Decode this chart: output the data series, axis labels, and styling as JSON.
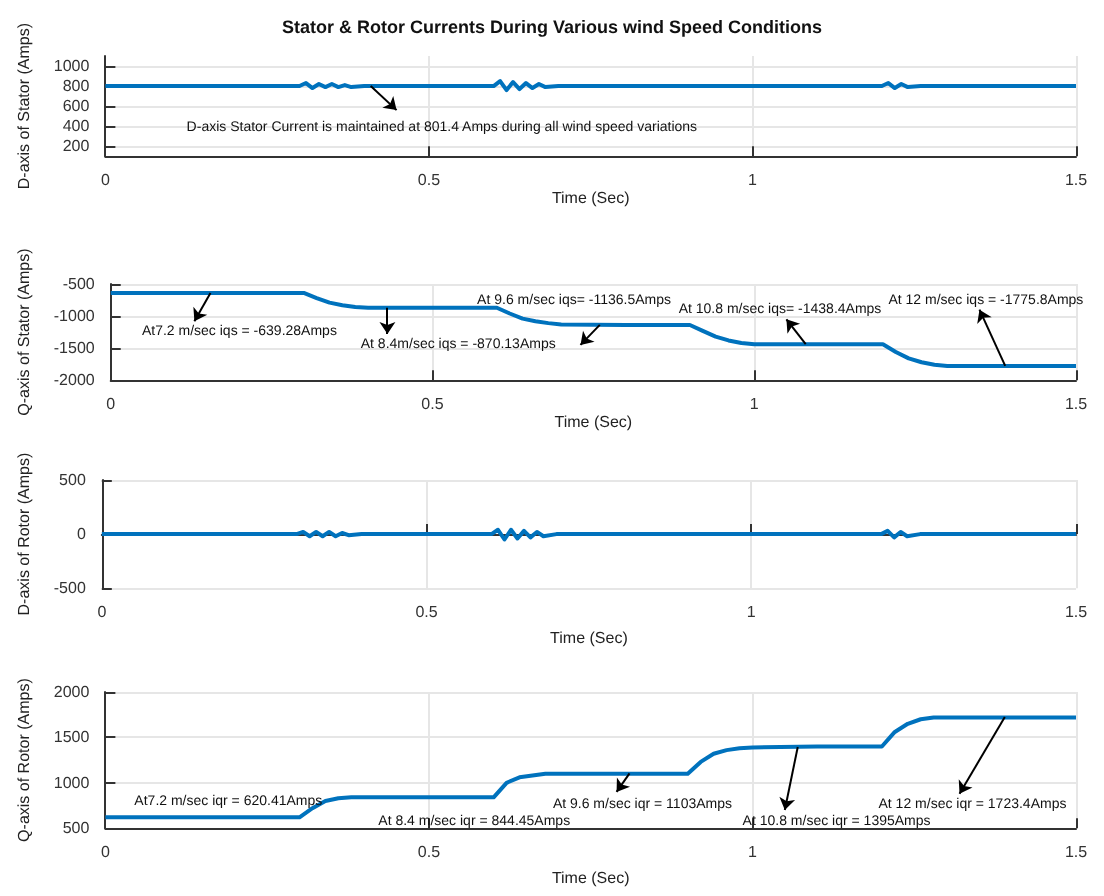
{
  "chart_data": [
    {
      "type": "line",
      "title": "Stator & Rotor Currents During Various wind Speed Conditions",
      "xlabel": "Time (Sec)",
      "ylabel": "D-axis of Stator (Amps)",
      "x": [
        0,
        0.1,
        0.2,
        0.3,
        0.31,
        0.32,
        0.33,
        0.34,
        0.35,
        0.36,
        0.37,
        0.38,
        0.4,
        0.5,
        0.6,
        0.61,
        0.62,
        0.63,
        0.64,
        0.65,
        0.66,
        0.67,
        0.68,
        0.7,
        0.8,
        0.9,
        1.0,
        1.1,
        1.2,
        1.21,
        1.22,
        1.23,
        1.24,
        1.26,
        1.3,
        1.4,
        1.5
      ],
      "series": [
        {
          "color": "#0072bd",
          "values": [
            800,
            800,
            800,
            800,
            830,
            780,
            820,
            790,
            820,
            790,
            810,
            790,
            800,
            800,
            800,
            850,
            760,
            840,
            770,
            830,
            780,
            820,
            790,
            800,
            800,
            800,
            800,
            800,
            800,
            830,
            780,
            820,
            790,
            800,
            800,
            800,
            800
          ]
        }
      ],
      "xlim": [
        0,
        1.5
      ],
      "xticks": [
        0,
        0.5,
        1,
        1.5
      ],
      "ylim": [
        100,
        1100
      ],
      "yticks": [
        200,
        400,
        600,
        800,
        1000
      ],
      "annotations": [
        {
          "text": "D-axis Stator Current is maintained at 801.4 Amps during all wind speed variations",
          "x": 0.41,
          "y": 801.4
        }
      ],
      "grid": true,
      "marker": "none"
    },
    {
      "type": "line",
      "xlabel": "Time (Sec)",
      "ylabel": "Q-axis of Stator (Amps)",
      "x": [
        0,
        0.3,
        0.32,
        0.34,
        0.36,
        0.38,
        0.4,
        0.5,
        0.6,
        0.62,
        0.64,
        0.66,
        0.68,
        0.7,
        0.8,
        0.9,
        0.92,
        0.94,
        0.96,
        0.98,
        1.0,
        1.1,
        1.2,
        1.22,
        1.24,
        1.26,
        1.28,
        1.3,
        1.4,
        1.5
      ],
      "series": [
        {
          "color": "#0072bd",
          "values": [
            -640,
            -640,
            -720,
            -790,
            -830,
            -860,
            -870,
            -870,
            -870,
            -960,
            -1040,
            -1080,
            -1110,
            -1130,
            -1140,
            -1140,
            -1230,
            -1320,
            -1380,
            -1420,
            -1440,
            -1440,
            -1440,
            -1560,
            -1660,
            -1720,
            -1760,
            -1780,
            -1780,
            -1780
          ]
        }
      ],
      "xlim": [
        0,
        1.5
      ],
      "xticks": [
        0,
        0.5,
        1,
        1.5
      ],
      "ylim": [
        -2000,
        -500
      ],
      "yticks": [
        -2000,
        -1500,
        -1000,
        -500
      ],
      "annotations": [
        {
          "text": "At7.2 m/sec iqs = -639.28Amps",
          "x": 0.155,
          "y": -639.28
        },
        {
          "text": "At 8.4m/sec iqs = -870.13Amps",
          "x": 0.43,
          "y": -870.13
        },
        {
          "text": "At 9.6 m/sec iqs= -1136.5Amps",
          "x": 0.76,
          "y": -1136.5
        },
        {
          "text": "At 10.8 m/sec iqs= -1438.4Amps",
          "x": 1.08,
          "y": -1438.4
        },
        {
          "text": "At 12 m/sec iqs = -1775.8Amps",
          "x": 1.39,
          "y": -1775.8
        }
      ],
      "grid": true,
      "marker": "none"
    },
    {
      "type": "line",
      "xlabel": "Time (Sec)",
      "ylabel": "D-axis of Rotor (Amps)",
      "x": [
        0,
        0.1,
        0.2,
        0.3,
        0.31,
        0.32,
        0.33,
        0.34,
        0.35,
        0.36,
        0.37,
        0.38,
        0.4,
        0.5,
        0.6,
        0.61,
        0.62,
        0.63,
        0.64,
        0.65,
        0.66,
        0.67,
        0.68,
        0.7,
        0.8,
        0.9,
        1.0,
        1.1,
        1.2,
        1.21,
        1.22,
        1.23,
        1.24,
        1.26,
        1.3,
        1.4,
        1.5
      ],
      "series": [
        {
          "color": "#0072bd",
          "values": [
            0,
            0,
            0,
            0,
            20,
            -20,
            20,
            -20,
            20,
            -20,
            10,
            -10,
            0,
            0,
            0,
            40,
            -50,
            40,
            -40,
            30,
            -30,
            20,
            -20,
            0,
            0,
            0,
            0,
            0,
            0,
            30,
            -30,
            20,
            -20,
            0,
            0,
            0,
            0
          ]
        }
      ],
      "xlim": [
        0,
        1.5
      ],
      "xticks": [
        0,
        0.5,
        1,
        1.5
      ],
      "ylim": [
        -500,
        500
      ],
      "yticks": [
        -500,
        0,
        500
      ],
      "grid": true,
      "marker": "none"
    },
    {
      "type": "line",
      "xlabel": "Time (Sec)",
      "ylabel": "Q-axis of Rotor (Amps)",
      "x": [
        0,
        0.3,
        0.32,
        0.34,
        0.36,
        0.38,
        0.4,
        0.5,
        0.6,
        0.62,
        0.64,
        0.66,
        0.68,
        0.7,
        0.8,
        0.9,
        0.92,
        0.94,
        0.96,
        0.98,
        1.0,
        1.1,
        1.2,
        1.22,
        1.24,
        1.26,
        1.28,
        1.3,
        1.4,
        1.5
      ],
      "series": [
        {
          "color": "#0072bd",
          "values": [
            620,
            620,
            720,
            800,
            830,
            840,
            840,
            840,
            840,
            1000,
            1060,
            1080,
            1100,
            1100,
            1100,
            1100,
            1230,
            1320,
            1360,
            1380,
            1390,
            1400,
            1400,
            1560,
            1650,
            1700,
            1720,
            1720,
            1720,
            1720
          ]
        }
      ],
      "xlim": [
        0,
        1.5
      ],
      "xticks": [
        0,
        0.5,
        1,
        1.5
      ],
      "ylim": [
        500,
        2000
      ],
      "yticks": [
        500,
        1000,
        1500,
        2000
      ],
      "annotations": [
        {
          "text": "At7.2 m/sec iqr = 620.41Amps",
          "x": 0.15,
          "y": 620.41
        },
        {
          "text": "At 8.4 m/sec iqr = 844.45Amps",
          "x": 0.5,
          "y": 844.45
        },
        {
          "text": "At 9.6 m/sec iqr = 1103Amps",
          "x": 0.81,
          "y": 1103
        },
        {
          "text": "At 10.8 m/sec iqr = 1395Amps",
          "x": 1.07,
          "y": 1395
        },
        {
          "text": "At 12 m/sec iqr = 1723.4Amps",
          "x": 1.39,
          "y": 1723.4
        }
      ],
      "grid": true,
      "marker": "none"
    }
  ]
}
